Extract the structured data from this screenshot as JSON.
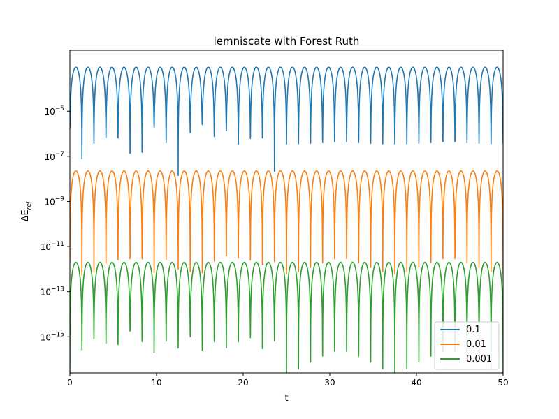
{
  "chart_data": {
    "type": "line",
    "title": "lemniscate with Forest Ruth",
    "xlabel": "t",
    "ylabel": "ΔE",
    "ylabel_sub": "rel",
    "xlim": [
      0,
      50
    ],
    "ylim_exp": [
      -16.6,
      -2.3
    ],
    "yscale": "log",
    "x_ticks": [
      0,
      10,
      20,
      30,
      40,
      50
    ],
    "y_tick_exponents": [
      -5,
      -7,
      -9,
      -11,
      -13,
      -15
    ],
    "y_tick_base": "10",
    "grid": false,
    "legend_position": "lower-right",
    "oscillation": {
      "cycles": 25,
      "t_start": 0,
      "t_end": 50
    },
    "series": [
      {
        "name": "0.1",
        "color": "#1f77b4",
        "peak_exp": -3.05,
        "dip_exp": [
          -5.8,
          -5.55,
          -7.15,
          -5.8,
          -6.45,
          -5.5,
          -6.2,
          -5.85,
          -6.25,
          -5.7,
          -7.35,
          -5.8,
          -7.0,
          -6.1,
          -5.75,
          -6.3,
          -6.4,
          -5.8,
          -7.85,
          -6.1,
          -5.95,
          -6.3,
          -5.6,
          -7.65,
          -6.15,
          -7.6,
          -5.9,
          -6.0,
          -6.6,
          -5.9,
          -6.25,
          -5.75,
          -6.2,
          -6.65,
          -7.8,
          -6.45
        ]
      },
      {
        "name": "0.01",
        "color": "#ff7f0e",
        "peak_exp": -7.65,
        "dip_exp": [
          -11.7,
          -12.0,
          -12.4,
          -12.1,
          -12.7,
          -12.9,
          -12.3,
          -11.9,
          -12.5,
          -12.0,
          -12.2,
          -12.6,
          -11.8,
          -12.1,
          -12.9,
          -12.3,
          -11.6,
          -12.4,
          -12.0,
          -12.8,
          -12.2,
          -11.9,
          -12.9,
          -12.3,
          -12.0,
          -12.6,
          -11.8,
          -12.4,
          -12.1,
          -12.7,
          -11.9,
          -12.3,
          -12.0,
          -12.8,
          -11.7,
          -12.2
        ]
      },
      {
        "name": "0.001",
        "color": "#2ca02c",
        "peak_exp": -11.7,
        "dip_exp": [
          -16.6,
          -14.9,
          -15.6,
          -16.6,
          -15.1,
          -16.6,
          -15.4,
          -16.6,
          -15.6,
          -16.6,
          -14.8,
          -16.6,
          -15.3,
          -16.6,
          -15.8,
          -16.6,
          -15.2,
          -16.6,
          -15.5,
          -16.6,
          -15.0,
          -16.6,
          -15.7,
          -16.6,
          -15.3,
          -16.6,
          -15.9,
          -16.6,
          -15.4,
          -16.6,
          -15.1,
          -16.6,
          -15.6,
          -16.6,
          -15.2,
          -16.6
        ]
      }
    ]
  }
}
